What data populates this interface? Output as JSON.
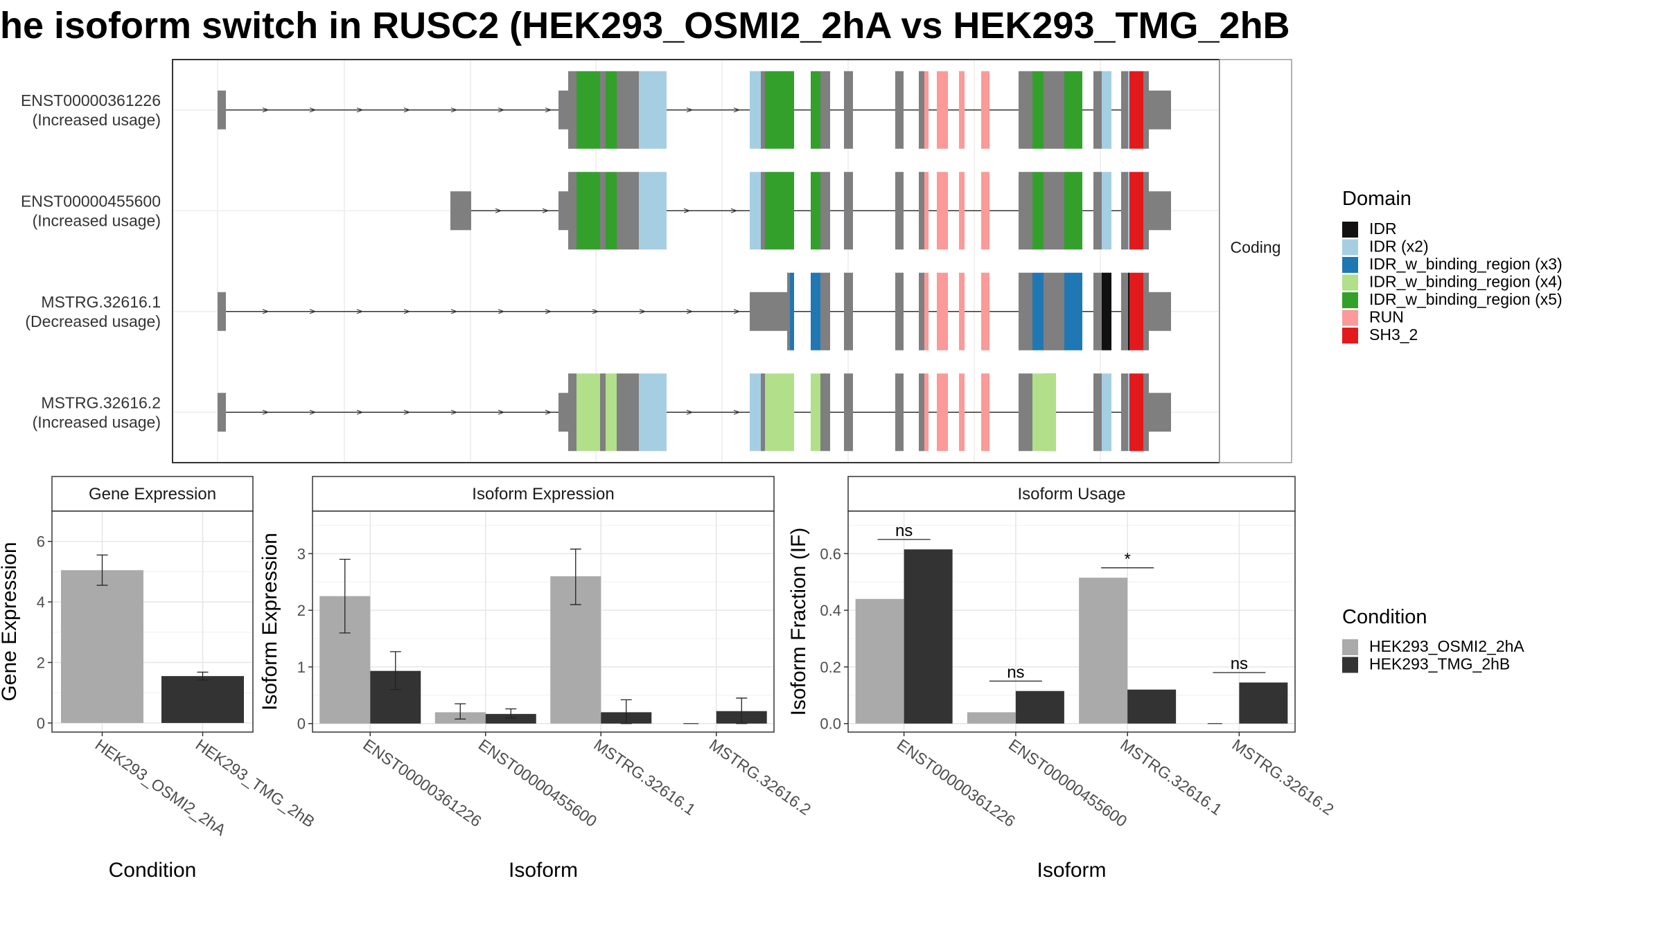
{
  "title": "he isoform switch in RUSC2 (HEK293_OSMI2_2hA vs HEK293_TMG_2hB",
  "structure": {
    "facet_label": "Coding",
    "isoforms": [
      {
        "id": "ENST00000361226",
        "usage": "(Increased usage)"
      },
      {
        "id": "ENST00000455600",
        "usage": "(Increased usage)"
      },
      {
        "id": "MSTRG.32616.1",
        "usage": "(Decreased usage)"
      },
      {
        "id": "MSTRG.32616.2",
        "usage": "(Increased usage)"
      }
    ],
    "legend": {
      "title": "Domain",
      "items": [
        {
          "label": "IDR",
          "color": "#111111"
        },
        {
          "label": "IDR (x2)",
          "color": "#a6cee3"
        },
        {
          "label": "IDR_w_binding_region (x3)",
          "color": "#1f78b4"
        },
        {
          "label": "IDR_w_binding_region (x4)",
          "color": "#b2df8a"
        },
        {
          "label": "IDR_w_binding_region (x5)",
          "color": "#33a02c"
        },
        {
          "label": "RUN",
          "color": "#fb9a99"
        },
        {
          "label": "SH3_2",
          "color": "#e31a1c"
        }
      ]
    },
    "exon_color": "#7f7f7f"
  },
  "condition_legend": {
    "title": "Condition",
    "items": [
      {
        "label": "HEK293_OSMI2_2hA",
        "color": "#aaaaaa"
      },
      {
        "label": "HEK293_TMG_2hB",
        "color": "#333333"
      }
    ]
  },
  "chart_data": [
    {
      "type": "bar",
      "title": "Gene Expression",
      "xlabel": "Condition",
      "ylabel": "Gene Expression",
      "ylim": [
        -0.3,
        7.0
      ],
      "yticks": [
        0,
        2,
        4,
        6
      ],
      "categories": [
        "HEK293_OSMI2_2hA",
        "HEK293_TMG_2hB"
      ],
      "values": [
        5.05,
        1.55
      ],
      "error_low": [
        4.55,
        1.42
      ],
      "error_high": [
        5.55,
        1.68
      ],
      "colors": [
        "#aaaaaa",
        "#333333"
      ]
    },
    {
      "type": "bar",
      "title": "Isoform Expression",
      "xlabel": "Isoform",
      "ylabel": "Isoform Expression",
      "ylim": [
        -0.15,
        3.75
      ],
      "yticks": [
        0,
        1,
        2,
        3
      ],
      "categories": [
        "ENST00000361226",
        "ENST00000455600",
        "MSTRG.32616.1",
        "MSTRG.32616.2"
      ],
      "series": [
        {
          "name": "HEK293_OSMI2_2hA",
          "values": [
            2.25,
            0.2,
            2.6,
            0.0
          ],
          "error_low": [
            1.6,
            0.08,
            2.1,
            0.0
          ],
          "error_high": [
            2.9,
            0.35,
            3.08,
            0.0
          ]
        },
        {
          "name": "HEK293_TMG_2hB",
          "values": [
            0.93,
            0.17,
            0.2,
            0.22
          ],
          "error_low": [
            0.6,
            0.1,
            0.0,
            0.0
          ],
          "error_high": [
            1.27,
            0.26,
            0.42,
            0.45
          ]
        }
      ]
    },
    {
      "type": "bar",
      "title": "Isoform Usage",
      "xlabel": "Isoform",
      "ylabel": "Isoform Fraction (IF)",
      "ylim": [
        -0.03,
        0.75
      ],
      "yticks": [
        0.0,
        0.2,
        0.4,
        0.6
      ],
      "ytick_labels": [
        "0.0",
        "0.2",
        "0.4",
        "0.6"
      ],
      "categories": [
        "ENST00000361226",
        "ENST00000455600",
        "MSTRG.32616.1",
        "MSTRG.32616.2"
      ],
      "series": [
        {
          "name": "HEK293_OSMI2_2hA",
          "values": [
            0.44,
            0.04,
            0.515,
            0.0
          ]
        },
        {
          "name": "HEK293_TMG_2hB",
          "values": [
            0.615,
            0.115,
            0.12,
            0.145
          ]
        }
      ],
      "significance": [
        {
          "label": "ns",
          "y": 0.65
        },
        {
          "label": "ns",
          "y": 0.15
        },
        {
          "label": "*",
          "y": 0.55
        },
        {
          "label": "ns",
          "y": 0.18
        }
      ]
    }
  ]
}
